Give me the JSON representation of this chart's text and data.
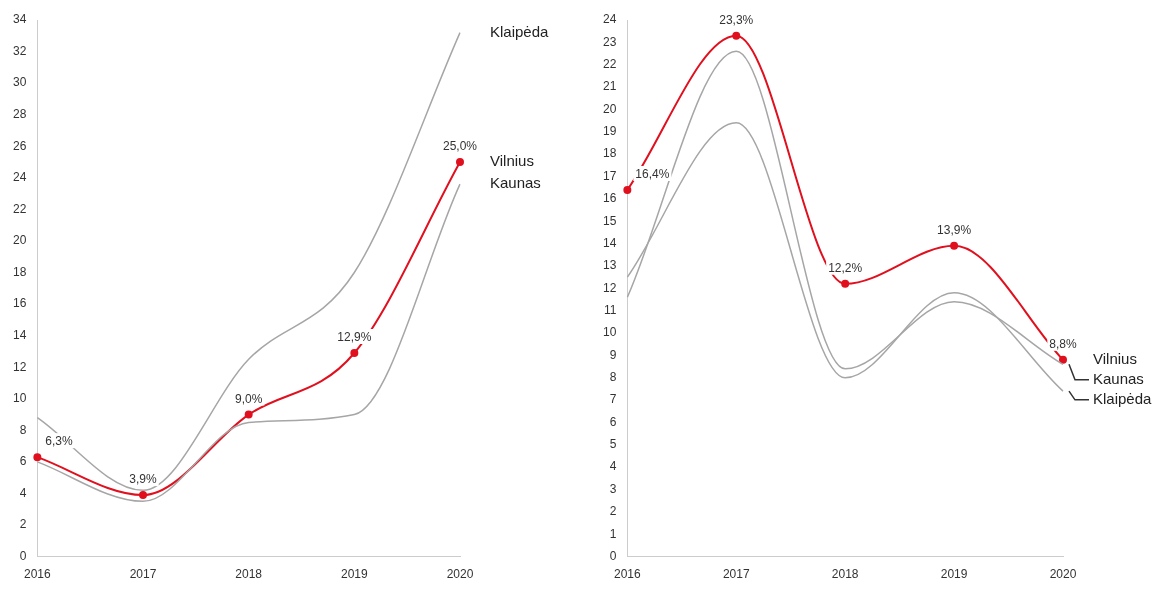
{
  "chart_data": [
    {
      "type": "line",
      "categories": [
        "2016",
        "2017",
        "2018",
        "2019",
        "2020"
      ],
      "ylim": [
        0,
        34
      ],
      "yticks": [
        0,
        2,
        4,
        6,
        8,
        10,
        12,
        14,
        16,
        18,
        20,
        22,
        24,
        26,
        28,
        30,
        32,
        34
      ],
      "grid": false,
      "legend": false,
      "series": [
        {
          "name": "Klaipėda",
          "color": "#a6a6a6",
          "marker": "none",
          "values": [
            8.8,
            4.2,
            12.5,
            18,
            33.2
          ]
        },
        {
          "name": "Kaunas",
          "color": "#a6a6a6",
          "marker": "none",
          "values": [
            6.0,
            3.5,
            8.5,
            9.0,
            23.6
          ]
        },
        {
          "name": "Vilnius",
          "color": "#e0101e",
          "marker": "circle",
          "values": [
            6.3,
            3.9,
            9.0,
            12.9,
            25.0
          ],
          "value_labels": [
            "6,3%",
            "3,9%",
            "9,0%",
            "12,9%",
            "25,0%"
          ]
        }
      ]
    },
    {
      "type": "line",
      "categories": [
        "2016",
        "2017",
        "2018",
        "2019",
        "2020"
      ],
      "ylim": [
        0,
        24
      ],
      "yticks": [
        0,
        1,
        2,
        3,
        4,
        5,
        6,
        7,
        8,
        9,
        10,
        11,
        12,
        13,
        14,
        15,
        16,
        17,
        18,
        19,
        20,
        21,
        22,
        23,
        24
      ],
      "grid": false,
      "legend": false,
      "series": [
        {
          "name": "Klaipėda",
          "color": "#a6a6a6",
          "marker": "none",
          "values": [
            12.5,
            19.4,
            8.0,
            11.8,
            7.4
          ]
        },
        {
          "name": "Kaunas",
          "color": "#a6a6a6",
          "marker": "none",
          "values": [
            11.6,
            22.6,
            8.4,
            11.4,
            8.6
          ]
        },
        {
          "name": "Vilnius",
          "color": "#e0101e",
          "marker": "circle",
          "values": [
            16.4,
            23.3,
            12.2,
            13.9,
            8.8
          ],
          "value_labels": [
            "16,4%",
            "23,3%",
            "12,2%",
            "13,9%",
            "8,8%"
          ]
        }
      ]
    }
  ]
}
